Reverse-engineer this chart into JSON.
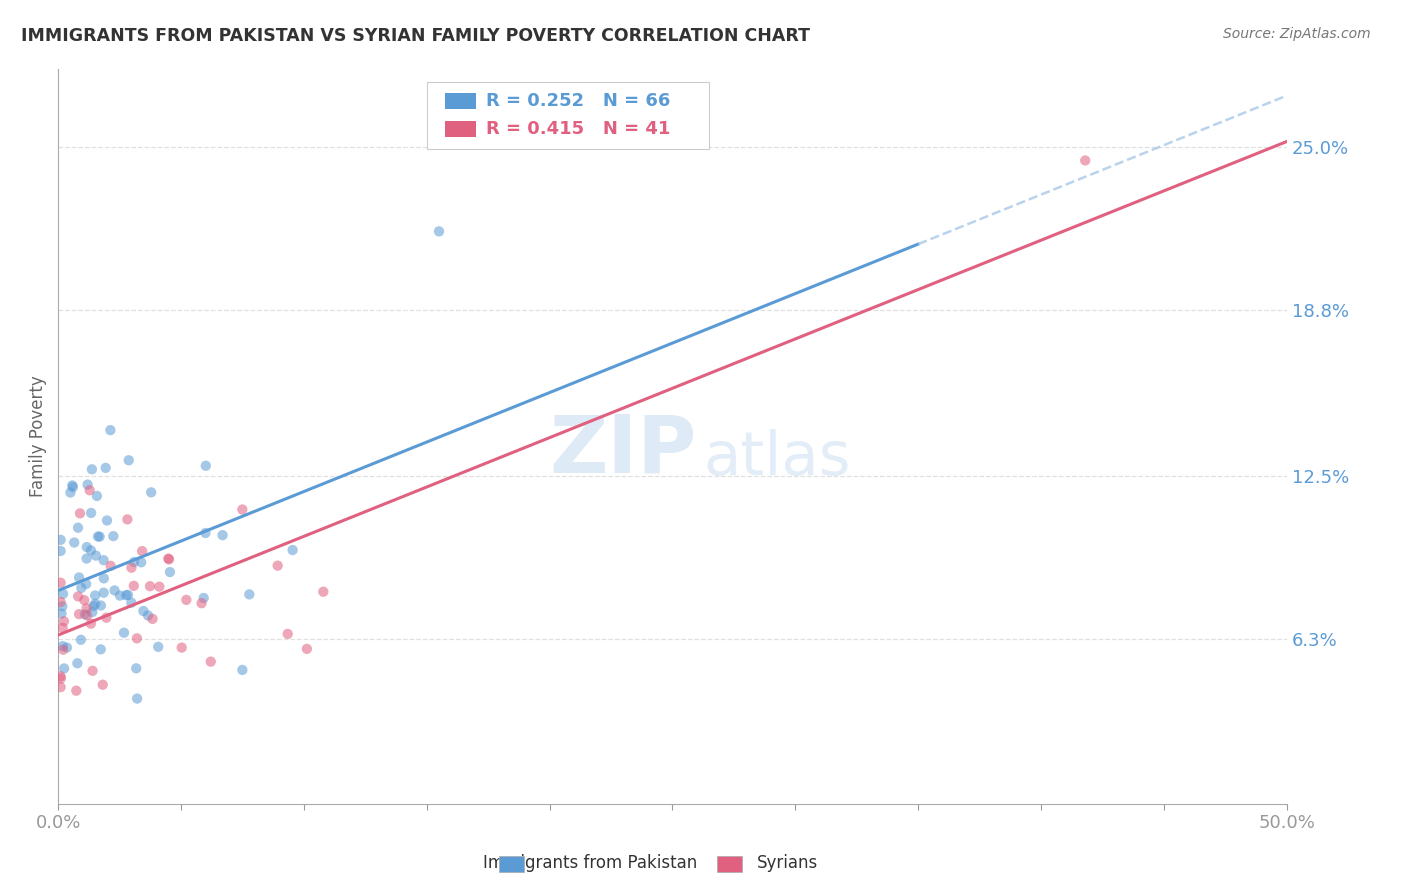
{
  "title": "IMMIGRANTS FROM PAKISTAN VS SYRIAN FAMILY POVERTY CORRELATION CHART",
  "source": "Source: ZipAtlas.com",
  "ylabel": "Family Poverty",
  "xlim": [
    0.0,
    0.5
  ],
  "ylim": [
    0.0,
    0.28
  ],
  "yticks": [
    0.063,
    0.125,
    0.188,
    0.25
  ],
  "ytick_labels": [
    "6.3%",
    "12.5%",
    "18.8%",
    "25.0%"
  ],
  "pakistan_color": "#5b9bd5",
  "pakistan_color_light": "#a8c8e8",
  "syria_color": "#e06080",
  "pakistan_label": "Immigrants from Pakistan",
  "syria_label": "Syrians",
  "pakistan_R": 0.252,
  "pakistan_N": 66,
  "syria_R": 0.415,
  "syria_N": 41,
  "watermark_zip": "ZIP",
  "watermark_atlas": "atlas",
  "background_color": "#ffffff",
  "grid_color": "#dddddd",
  "title_color": "#333333",
  "axis_label_color": "#5b9bd5",
  "legend_R_color": "#5b9bd5",
  "legend_N_color": "#e06080"
}
